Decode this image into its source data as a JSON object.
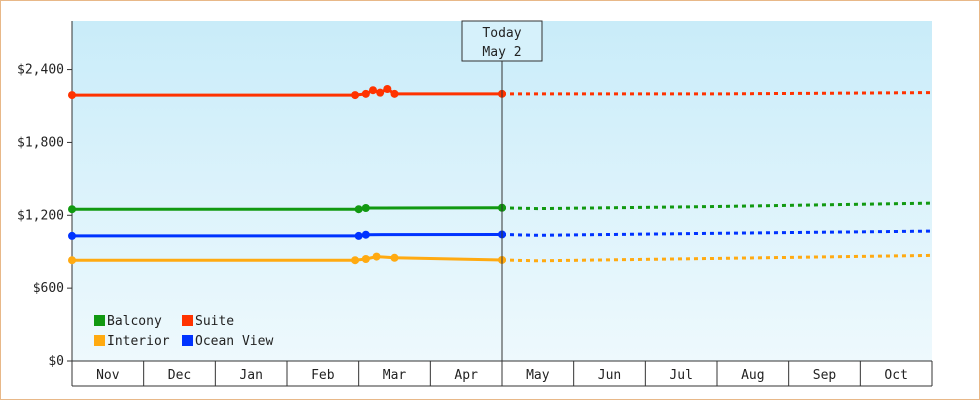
{
  "chart_data": {
    "type": "line",
    "title": "",
    "xlabel": "",
    "ylabel": "",
    "ylim": [
      0,
      2800
    ],
    "y_ticks": [
      {
        "value": 0,
        "label": "$0"
      },
      {
        "value": 600,
        "label": "$600"
      },
      {
        "value": 1200,
        "label": "$1,200"
      },
      {
        "value": 1800,
        "label": "$1,800"
      },
      {
        "value": 2400,
        "label": "$2,400"
      }
    ],
    "months": [
      "Nov",
      "Dec",
      "Jan",
      "Feb",
      "Mar",
      "Apr",
      "May",
      "Jun",
      "Jul",
      "Aug",
      "Sep",
      "Oct"
    ],
    "today_marker": {
      "line1": "Today",
      "line2": "May 2",
      "month_index": 6.0
    },
    "series": [
      {
        "name": "Suite",
        "color": "#ff3300",
        "history": [
          [
            0.0,
            2190
          ],
          [
            3.95,
            2190
          ],
          [
            4.1,
            2200
          ],
          [
            4.2,
            2230
          ],
          [
            4.3,
            2210
          ],
          [
            4.4,
            2240
          ],
          [
            4.5,
            2200
          ],
          [
            6.0,
            2200
          ]
        ],
        "forecast": [
          [
            6.0,
            2200
          ],
          [
            9.0,
            2200
          ],
          [
            12.0,
            2210
          ]
        ]
      },
      {
        "name": "Balcony",
        "color": "#119911",
        "history": [
          [
            0.0,
            1250
          ],
          [
            4.0,
            1250
          ],
          [
            4.1,
            1260
          ],
          [
            6.0,
            1262
          ]
        ],
        "forecast": [
          [
            6.0,
            1262
          ],
          [
            6.5,
            1255
          ],
          [
            9.0,
            1272
          ],
          [
            12.0,
            1300
          ]
        ]
      },
      {
        "name": "Ocean View",
        "color": "#0033ff",
        "history": [
          [
            0.0,
            1030
          ],
          [
            4.0,
            1030
          ],
          [
            4.1,
            1040
          ],
          [
            6.0,
            1042
          ]
        ],
        "forecast": [
          [
            6.0,
            1042
          ],
          [
            6.5,
            1035
          ],
          [
            9.0,
            1052
          ],
          [
            12.0,
            1070
          ]
        ]
      },
      {
        "name": "Interior",
        "color": "#ffaa11",
        "history": [
          [
            0.0,
            830
          ],
          [
            3.95,
            830
          ],
          [
            4.1,
            840
          ],
          [
            4.25,
            860
          ],
          [
            4.5,
            850
          ],
          [
            6.0,
            832
          ]
        ],
        "forecast": [
          [
            6.0,
            832
          ],
          [
            6.5,
            825
          ],
          [
            9.0,
            845
          ],
          [
            12.0,
            870
          ]
        ]
      }
    ],
    "legend": {
      "placement": "bottom-left",
      "items": [
        {
          "name": "Balcony",
          "color": "#119911"
        },
        {
          "name": "Suite",
          "color": "#ff3300"
        },
        {
          "name": "Interior",
          "color": "#ffaa11"
        },
        {
          "name": "Ocean View",
          "color": "#0033ff"
        }
      ]
    },
    "grid": false
  }
}
